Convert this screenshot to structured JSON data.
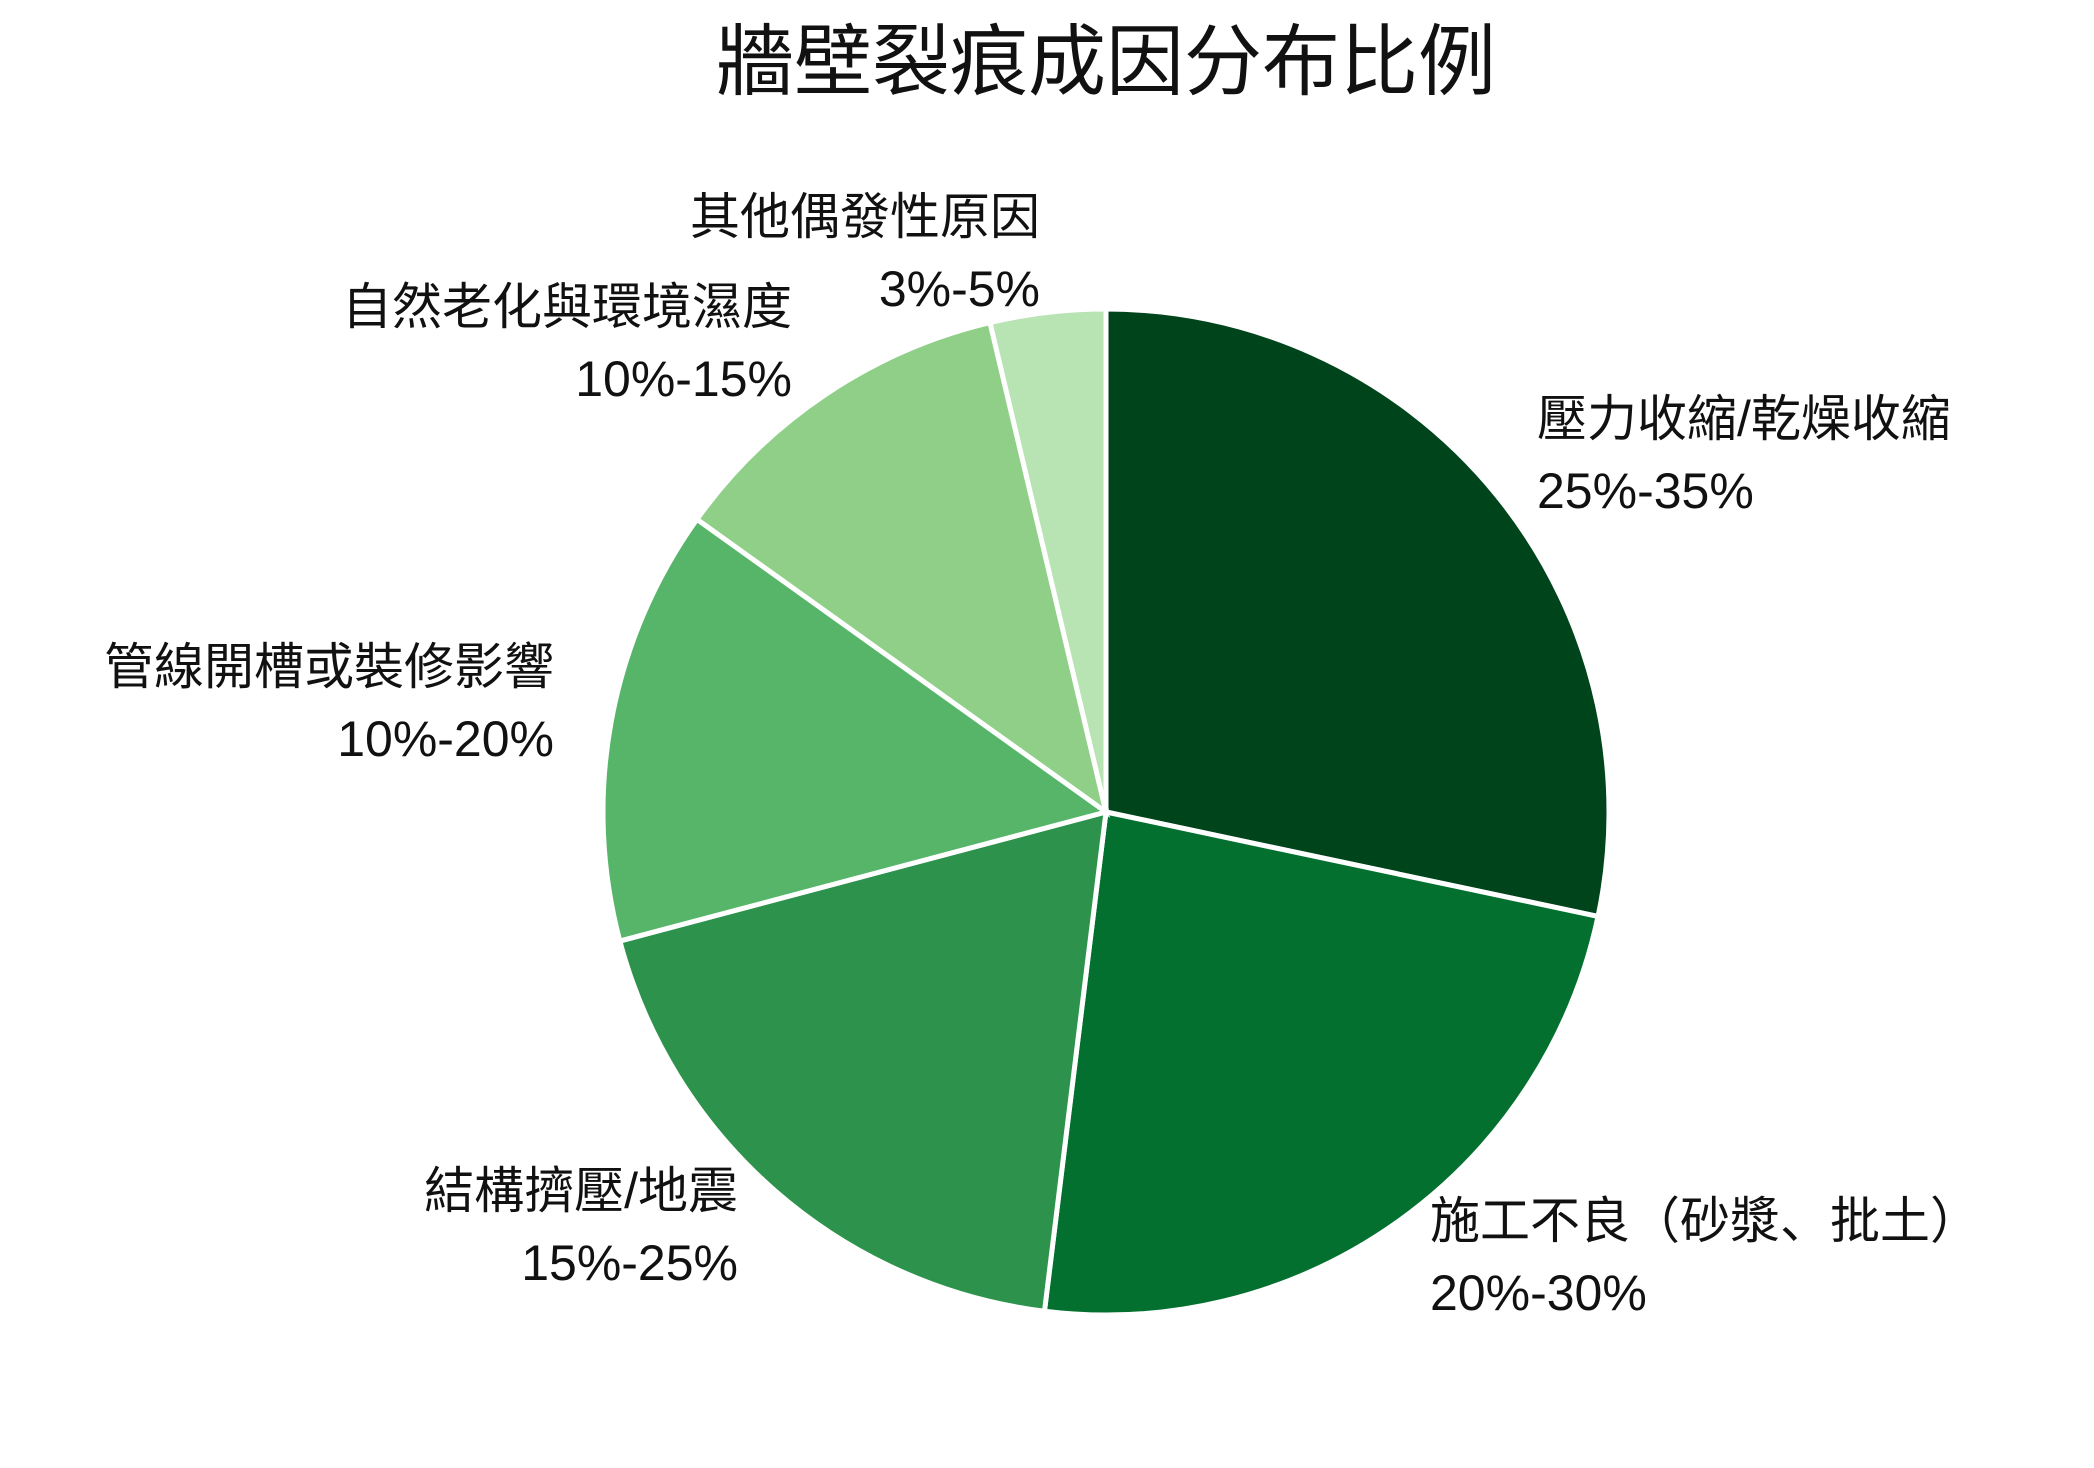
{
  "chart_data": {
    "type": "pie",
    "title": "牆壁裂痕成因分布比例",
    "categories": [
      "壓力收縮/乾燥收縮",
      "施工不良（砂漿、批土）",
      "結構擠壓/地震",
      "管線開槽或裝修影響",
      "自然老化與環境濕度",
      "其他偶發性原因"
    ],
    "ranges": [
      "25%-35%",
      "20%-30%",
      "15%-25%",
      "10%-20%",
      "10%-15%",
      "3%-5%"
    ],
    "values": [
      28.3,
      23.6,
      18.9,
      14.0,
      11.4,
      3.7
    ],
    "colors": [
      "#00441b",
      "#04702f",
      "#2d924b",
      "#57b56a",
      "#8fcf88",
      "#b8e3b2"
    ]
  }
}
